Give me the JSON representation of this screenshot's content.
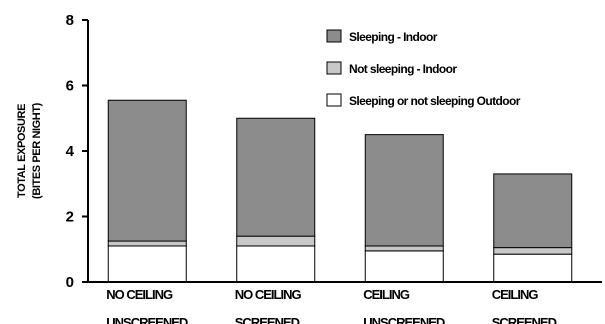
{
  "chart_data": {
    "type": "bar",
    "stacked": true,
    "title": "",
    "xlabel": "",
    "ylabel": [
      "TOTAL EXPOSURE",
      "(BITES PER NIGHT)"
    ],
    "ylim": [
      0,
      8
    ],
    "yticks": [
      "0",
      "2",
      "4",
      "6",
      "8"
    ],
    "grid": false,
    "legend_position": "top-right",
    "categories": [
      [
        "NO CEILING",
        "UNSCREENED"
      ],
      [
        "NO CEILING",
        "SCREENED"
      ],
      [
        "CEILING",
        "UNSCREENED"
      ],
      [
        "CEILING",
        "SCREENED"
      ]
    ],
    "series": [
      {
        "name": "Sleeping or not sleeping Outdoor",
        "color": "#ffffff",
        "values": [
          1.1,
          1.1,
          0.95,
          0.85
        ]
      },
      {
        "name": "Not sleeping - Indoor",
        "color": "#c8c8c8",
        "values": [
          0.15,
          0.3,
          0.15,
          0.2
        ]
      },
      {
        "name": "Sleeping - Indoor",
        "color": "#8c8c8c",
        "values": [
          4.3,
          3.6,
          3.4,
          2.25
        ]
      }
    ],
    "legend_order": [
      2,
      1,
      0
    ]
  }
}
